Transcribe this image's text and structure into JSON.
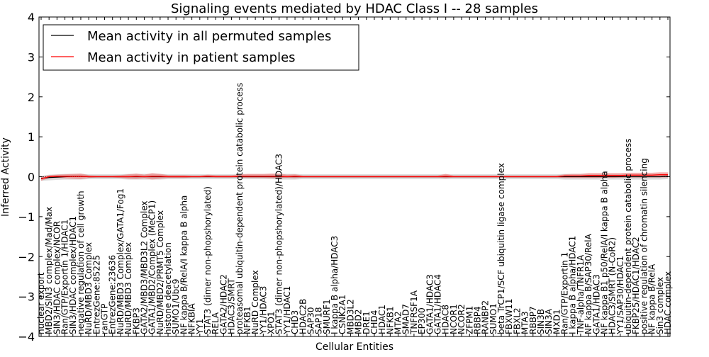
{
  "chart_data": {
    "type": "line",
    "title": "Signaling events mediated by HDAC Class I -- 28 samples",
    "xlabel": "Cellular Entities",
    "ylabel": "Inferred Activity",
    "ylim": [
      -4,
      4
    ],
    "yticks": [
      -4,
      -3,
      -2,
      -1,
      0,
      1,
      2,
      3,
      4
    ],
    "ytick_labels": [
      "−4",
      "−3",
      "−2",
      "−1",
      "0",
      "1",
      "2",
      "3",
      "4"
    ],
    "legend": {
      "placement": "top-left",
      "entries": [
        {
          "label": "Mean activity in all permuted samples",
          "color": "#000000"
        },
        {
          "label": "Mean activity in patient samples",
          "color": "#ff0000"
        }
      ]
    },
    "categories": [
      "nuclear export",
      "MBD2/SIN3 complex/Mad/Max",
      "SIN3/HDAC complex/NCOR",
      "Ran/GTP/Exportin 1/HDAC1",
      "SIN3/HDAC complex/HDAC1",
      "negative regulation of cell growth",
      "NuRD/MBD3 Complex",
      "EntrezGene:85225",
      "ranGTP",
      "EntrezGene:23636",
      "NuRD/MBD3 Complex/GATA1/Fog1",
      "NuRD/MBD3 Complex",
      "FKBP3",
      "GATA2/MBD3/MBD3L2 Complex",
      "GATA1/MBD2/Complex (MeCP1)",
      "NuRD/MBD2/PRMT5 Complex",
      "histone deacetylation",
      "SUMO1/Ubc9",
      "NF kappa B/RelA/I kappa B alpha",
      "NFKBIA",
      "YY1",
      "STAT3 (dimer non-phopshorylated)",
      "RELA",
      "GATA2/HDAC2",
      "HDAC3/SMRT",
      "proteasomal ubiquitin-dependent protein catabolic process",
      "NFKB1",
      "NuRD Complex",
      "YY1/HDAC3",
      "XPO1",
      "STAT3 (dimer non-phopshorylated)/HDAC3",
      "YY1/HDAC1",
      "CHD3",
      "HDAC2B",
      "SAP30",
      "SAP18",
      "SMURF1",
      "I kappa B alpha/HDAC3",
      "CSNK2A1",
      "MBD3L2",
      "MBD2",
      "DRE1",
      "CHD4",
      "HDAC1",
      "NFKB1",
      "MTA2",
      "SMAD7",
      "TNFRSF1A",
      "EP300",
      "GATA1/HDAC3",
      "GATA1/HDAC4",
      "HDAC8",
      "NCOR1",
      "NCOR2",
      "ZFPM1",
      "RBBP4",
      "RANBP2",
      "SUMO1",
      "beta TrCP1/SCF ubiquitin ligase complex",
      "FBXW11",
      "FBXL2",
      "MTA3",
      "RBBP7",
      "SIN3B",
      "SIN3A",
      "MXD1",
      "Ran/GTP/Exportin 1",
      "I kappa B alpha/HDAC1",
      "TNF-alpha/TNFR1A",
      "NF kappa B/SAP30/RelA",
      "GATA1/HDAC3",
      "NF kappa B1 p50/RelA/I kappa B alpha",
      "HDAC3/SMRT (N-CoR2)",
      "YY1/SAP30/HDAC1",
      "ubiquitin-dependent protein catabolic process",
      "FKBP25/HDAC1/HDAC2",
      "positive regulation of chromatin silencing",
      "NF kappa B/RelA",
      "Sin3 complex",
      "HDAC complex"
    ],
    "series": [
      {
        "name": "Mean activity in all permuted samples",
        "color": "#000000",
        "values": [
          -0.04,
          -0.02,
          -0.01,
          0.0,
          0.01,
          0.01,
          0.0,
          0.0,
          0.0,
          0.0,
          0.0,
          0.0,
          0.0,
          0.0,
          0.0,
          0.0,
          0.0,
          0.0,
          0.0,
          0.0,
          0.0,
          0.0,
          0.0,
          0.0,
          0.0,
          0.0,
          0.0,
          0.0,
          0.0,
          0.0,
          0.0,
          0.0,
          0.0,
          0.0,
          0.0,
          0.0,
          0.0,
          0.0,
          0.0,
          0.0,
          0.0,
          0.0,
          0.0,
          0.0,
          0.0,
          0.0,
          0.0,
          0.0,
          0.0,
          0.0,
          0.0,
          0.0,
          0.0,
          0.0,
          0.0,
          0.0,
          0.0,
          0.0,
          0.0,
          0.0,
          0.0,
          0.0,
          0.0,
          0.0,
          0.0,
          0.0,
          0.0,
          0.0,
          0.0,
          0.0,
          0.0,
          0.0,
          0.0,
          0.0,
          0.0,
          0.0,
          0.0,
          0.0,
          0.0,
          0.01
        ]
      },
      {
        "name": "Mean activity in patient samples",
        "color": "#ff0000",
        "values": [
          -0.05,
          0.0,
          0.01,
          0.01,
          0.01,
          0.01,
          0.0,
          0.0,
          0.0,
          0.0,
          0.0,
          0.0,
          0.01,
          0.0,
          0.01,
          0.01,
          0.0,
          0.0,
          0.0,
          0.0,
          0.0,
          0.01,
          0.0,
          0.0,
          0.0,
          0.01,
          0.01,
          0.01,
          0.01,
          0.01,
          0.01,
          0.0,
          0.01,
          0.0,
          0.0,
          0.0,
          0.0,
          0.0,
          0.0,
          0.0,
          0.0,
          0.0,
          0.0,
          0.0,
          0.0,
          0.0,
          0.0,
          0.0,
          0.0,
          0.0,
          0.0,
          0.01,
          0.0,
          0.0,
          0.0,
          0.0,
          0.0,
          0.0,
          0.0,
          0.0,
          0.0,
          0.0,
          0.0,
          0.0,
          0.0,
          0.0,
          0.02,
          0.02,
          0.02,
          0.03,
          0.03,
          0.03,
          0.03,
          0.03,
          0.04,
          0.04,
          0.04,
          0.04,
          0.05,
          0.05
        ]
      }
    ],
    "bands": [
      {
        "name": "permuted-spread",
        "color": "#bbbbbb",
        "lower": [
          -0.1,
          -0.09,
          -0.08,
          -0.07,
          -0.07,
          -0.07,
          -0.06,
          -0.06,
          -0.06,
          -0.06,
          -0.06,
          -0.07,
          -0.07,
          -0.07,
          -0.07,
          -0.07,
          -0.06,
          -0.06,
          -0.06,
          -0.06,
          -0.06,
          -0.06,
          -0.06,
          -0.06,
          -0.06,
          -0.06,
          -0.06,
          -0.06,
          -0.06,
          -0.06,
          -0.07,
          -0.07,
          -0.07,
          -0.06,
          -0.06,
          -0.06,
          -0.06,
          -0.06,
          -0.06,
          -0.06,
          -0.06,
          -0.06,
          -0.06,
          -0.06,
          -0.06,
          -0.06,
          -0.06,
          -0.06,
          -0.06,
          -0.06,
          -0.06,
          -0.06,
          -0.06,
          -0.06,
          -0.06,
          -0.06,
          -0.06,
          -0.06,
          -0.06,
          -0.06,
          -0.06,
          -0.06,
          -0.06,
          -0.06,
          -0.06,
          -0.06,
          -0.07,
          -0.07,
          -0.07,
          -0.07,
          -0.07,
          -0.07,
          -0.07,
          -0.07,
          -0.07,
          -0.07,
          -0.07,
          -0.07,
          -0.07,
          -0.06
        ],
        "upper": [
          0.02,
          0.05,
          0.06,
          0.07,
          0.07,
          0.07,
          0.06,
          0.06,
          0.06,
          0.06,
          0.06,
          0.07,
          0.07,
          0.07,
          0.07,
          0.07,
          0.06,
          0.06,
          0.06,
          0.06,
          0.06,
          0.06,
          0.06,
          0.06,
          0.06,
          0.06,
          0.06,
          0.06,
          0.06,
          0.06,
          0.07,
          0.07,
          0.07,
          0.06,
          0.06,
          0.06,
          0.06,
          0.06,
          0.06,
          0.06,
          0.06,
          0.06,
          0.06,
          0.06,
          0.06,
          0.06,
          0.06,
          0.06,
          0.06,
          0.06,
          0.06,
          0.06,
          0.06,
          0.06,
          0.06,
          0.06,
          0.06,
          0.06,
          0.06,
          0.06,
          0.06,
          0.06,
          0.06,
          0.06,
          0.06,
          0.06,
          0.07,
          0.07,
          0.07,
          0.07,
          0.07,
          0.07,
          0.07,
          0.07,
          0.07,
          0.07,
          0.07,
          0.07,
          0.07,
          0.08
        ]
      },
      {
        "name": "patient-spread",
        "color": "#ee7070",
        "lower": [
          -0.1,
          -0.04,
          -0.03,
          -0.04,
          -0.05,
          -0.06,
          -0.03,
          -0.02,
          -0.02,
          -0.02,
          -0.03,
          -0.05,
          -0.06,
          -0.04,
          -0.07,
          -0.05,
          -0.03,
          -0.03,
          -0.03,
          -0.02,
          -0.02,
          -0.02,
          -0.02,
          -0.02,
          -0.02,
          -0.02,
          -0.03,
          -0.03,
          -0.03,
          -0.04,
          -0.04,
          -0.03,
          -0.04,
          -0.02,
          -0.02,
          -0.02,
          -0.02,
          -0.02,
          -0.02,
          -0.02,
          -0.02,
          -0.02,
          -0.02,
          -0.02,
          -0.02,
          -0.02,
          -0.02,
          -0.02,
          -0.02,
          -0.02,
          -0.02,
          -0.04,
          -0.02,
          -0.02,
          -0.02,
          -0.02,
          -0.02,
          -0.02,
          -0.02,
          -0.02,
          -0.02,
          -0.02,
          -0.02,
          -0.02,
          -0.02,
          -0.02,
          -0.03,
          -0.03,
          -0.03,
          -0.03,
          -0.03,
          -0.02,
          -0.03,
          -0.02,
          -0.02,
          -0.02,
          -0.02,
          -0.02,
          -0.02,
          -0.02
        ],
        "upper": [
          0.0,
          0.04,
          0.05,
          0.06,
          0.07,
          0.08,
          0.04,
          0.03,
          0.03,
          0.03,
          0.04,
          0.06,
          0.08,
          0.05,
          0.09,
          0.07,
          0.04,
          0.04,
          0.04,
          0.03,
          0.03,
          0.05,
          0.04,
          0.04,
          0.04,
          0.06,
          0.07,
          0.07,
          0.07,
          0.08,
          0.08,
          0.05,
          0.06,
          0.03,
          0.03,
          0.03,
          0.03,
          0.03,
          0.03,
          0.03,
          0.03,
          0.03,
          0.03,
          0.03,
          0.03,
          0.03,
          0.03,
          0.03,
          0.03,
          0.03,
          0.03,
          0.07,
          0.03,
          0.03,
          0.03,
          0.03,
          0.03,
          0.03,
          0.03,
          0.03,
          0.03,
          0.03,
          0.03,
          0.03,
          0.03,
          0.03,
          0.06,
          0.07,
          0.07,
          0.09,
          0.09,
          0.09,
          0.09,
          0.09,
          0.1,
          0.1,
          0.1,
          0.1,
          0.11,
          0.11
        ]
      }
    ]
  }
}
